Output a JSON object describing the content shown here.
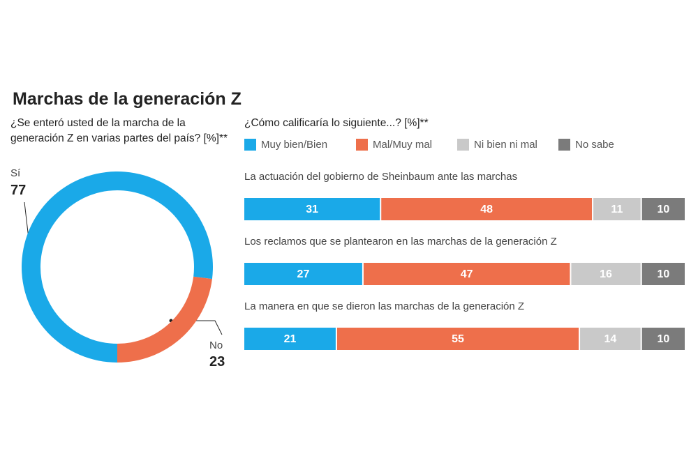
{
  "title": "Marchas de la generación Z",
  "chart_data": [
    {
      "type": "pie",
      "title": "¿Se enteró usted de la marcha de la generación Z en varias partes del país? [%]**",
      "categories": [
        "Sí",
        "No"
      ],
      "values": [
        77,
        23
      ],
      "colors": [
        "#1aa9e8",
        "#ee6f4b"
      ]
    },
    {
      "type": "bar",
      "orientation": "horizontal",
      "stacked": true,
      "title": "¿Cómo calificaría lo siguiente...? [%]**",
      "categories": [
        "La actuación del gobierno de Sheinbaum ante las marchas",
        "Los reclamos que se plantearon en las marchas de la generación Z",
        "La manera en que se dieron las marchas de la generación Z"
      ],
      "series": [
        {
          "name": "Muy bien/Bien",
          "color": "#1aa9e8",
          "values": [
            31,
            27,
            21
          ]
        },
        {
          "name": "Mal/Muy mal",
          "color": "#ee6f4b",
          "values": [
            48,
            47,
            55
          ]
        },
        {
          "name": "Ni bien ni mal",
          "color": "#c9c9c9",
          "values": [
            11,
            16,
            14
          ]
        },
        {
          "name": "No sabe",
          "color": "#7b7b7b",
          "values": [
            10,
            10,
            10
          ]
        }
      ]
    }
  ]
}
